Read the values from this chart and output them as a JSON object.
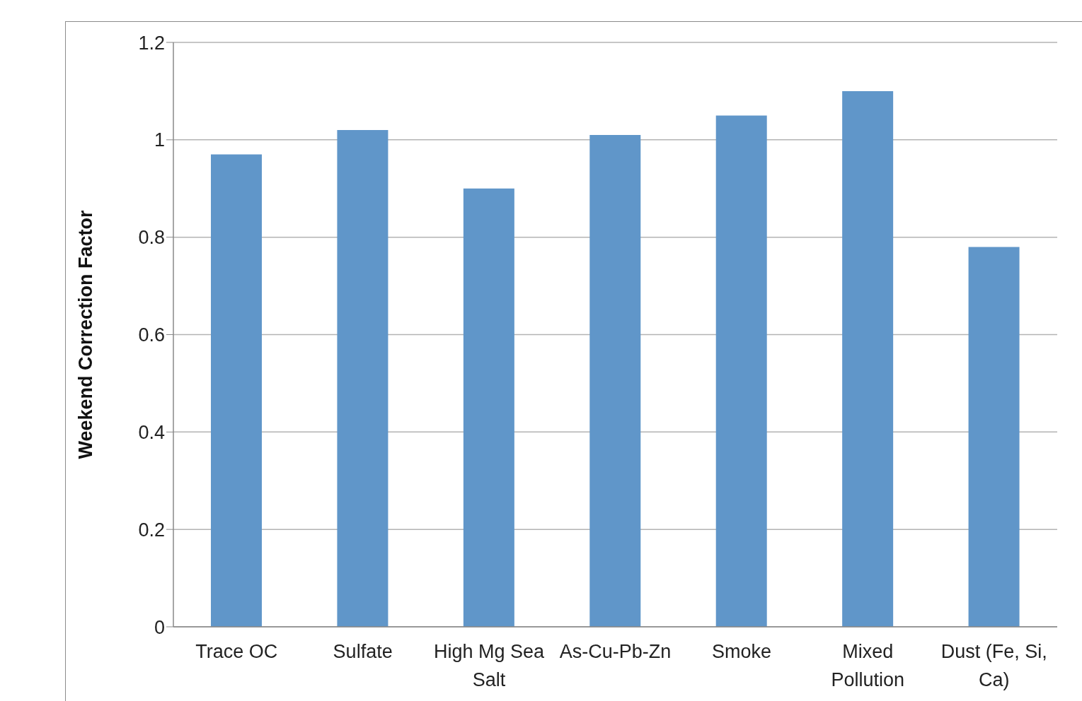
{
  "chart_data": {
    "type": "bar",
    "ylabel": "Weekend Correction Factor",
    "categories": [
      "Trace OC",
      "Sulfate",
      "High Mg Sea Salt",
      "As-Cu-Pb-Zn",
      "Smoke",
      "Mixed Pollution",
      "Dust (Fe, Si, Ca)"
    ],
    "values": [
      0.97,
      1.02,
      0.9,
      1.01,
      1.05,
      1.1,
      0.78
    ],
    "color": "#6096c9",
    "ylim": [
      0,
      1.2
    ],
    "yticks": [
      0,
      0.2,
      0.4,
      0.6,
      0.8,
      1,
      1.2
    ],
    "grid": "y"
  }
}
